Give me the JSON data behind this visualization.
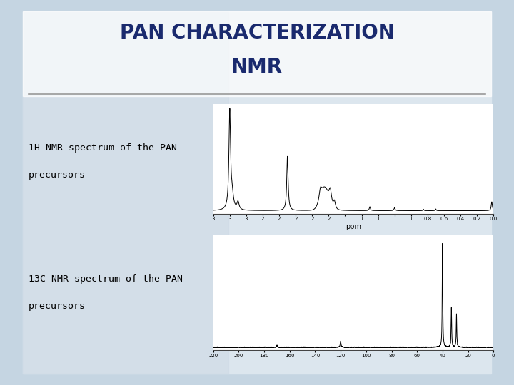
{
  "title_line1": "PAN CHARACTERIZATION",
  "title_line2": "NMR",
  "title_color": "#1a2a6e",
  "title_fontsize": 20,
  "bg_color": "#c5d5e2",
  "slide_bg": "#dce6ee",
  "white_panel_alpha": 0.75,
  "label1_line1": "1H-NMR spectrum of the PAN",
  "label1_line2": "precursors",
  "label2_line1": "13C-NMR spectrum of the PAN",
  "label2_line2": "precursors",
  "label_fontsize": 9.5,
  "separator_color": "#999999",
  "nmr1_xlabel": "ppm",
  "nmr1_xticks": [
    3.4,
    3.2,
    3.0,
    2.8,
    2.6,
    2.4,
    2.2,
    2.0,
    1.8,
    1.6,
    1.4,
    1.2,
    1.0,
    0.8,
    0.6,
    0.4,
    0.2,
    0.0
  ],
  "nmr2_xticks": [
    220,
    200,
    180,
    160,
    140,
    120,
    100,
    80,
    60,
    40,
    20,
    0
  ]
}
